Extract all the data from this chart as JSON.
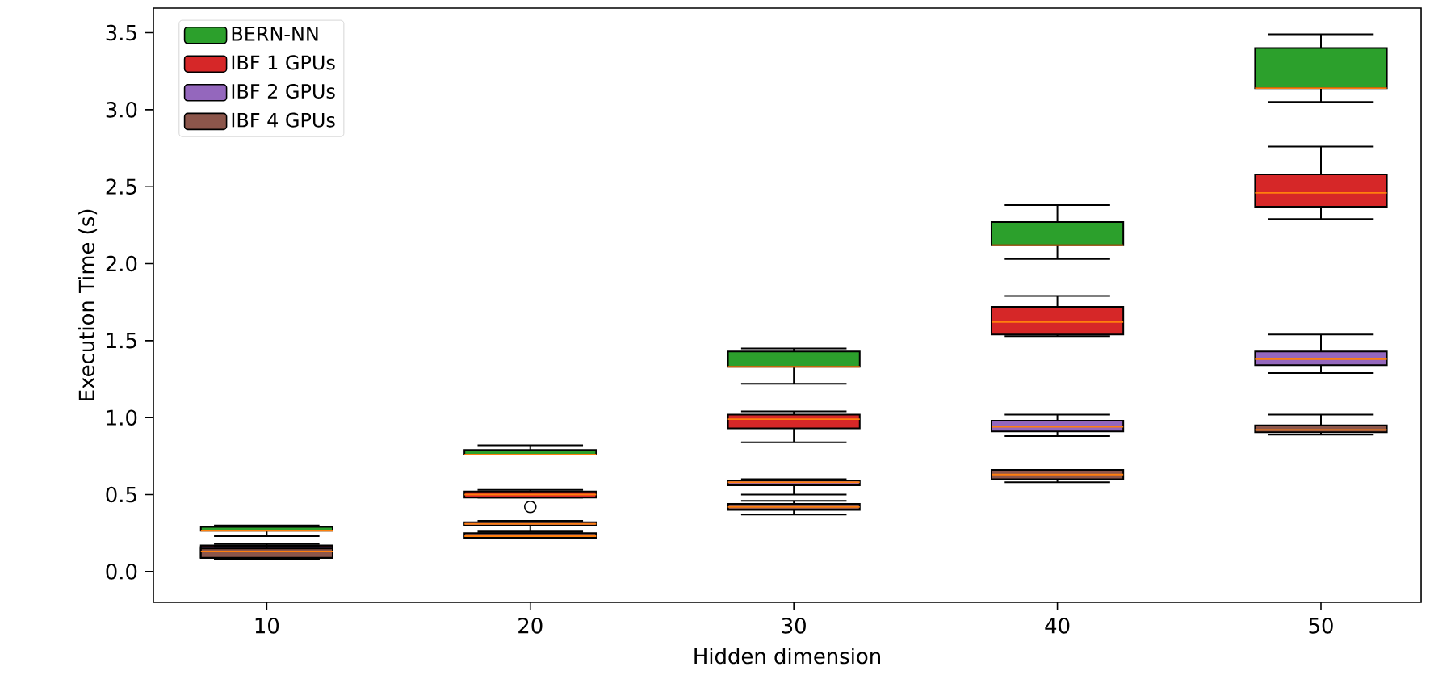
{
  "chart_data": {
    "type": "box",
    "xlabel": "Hidden dimension",
    "ylabel": "Execution Time (s)",
    "categories": [
      "10",
      "20",
      "30",
      "40",
      "50"
    ],
    "ylim": [
      -0.2,
      3.66
    ],
    "yticks": [
      {
        "value": 0,
        "label": "0.0"
      },
      0.5,
      {
        "value": 1,
        "label": "1.0"
      },
      1.5,
      {
        "value": 2,
        "label": "2.0"
      },
      2.5,
      {
        "value": 3,
        "label": "3.0"
      },
      3.5
    ],
    "grid": false,
    "legend": "top left",
    "series": [
      {
        "name": "BERN-NN",
        "color": "#2ca02c",
        "boxes": [
          {
            "low": 0.23,
            "q1": 0.265,
            "median": 0.265,
            "q3": 0.29,
            "high": 0.3
          },
          {
            "low": 0.76,
            "q1": 0.76,
            "median": 0.76,
            "q3": 0.79,
            "high": 0.82
          },
          {
            "low": 1.22,
            "q1": 1.33,
            "median": 1.33,
            "q3": 1.43,
            "high": 1.45
          },
          {
            "low": 2.03,
            "q1": 2.12,
            "median": 2.12,
            "q3": 2.27,
            "high": 2.38
          },
          {
            "low": 3.05,
            "q1": 3.14,
            "median": 3.14,
            "q3": 3.4,
            "high": 3.49
          }
        ]
      },
      {
        "name": "IBF 1 GPUs",
        "color": "#d62728",
        "boxes": [
          {
            "low": 0.08,
            "q1": 0.09,
            "median": 0.15,
            "q3": 0.17,
            "high": 0.18
          },
          {
            "low": 0.48,
            "q1": 0.48,
            "median": 0.5,
            "q3": 0.52,
            "high": 0.53,
            "outliers": [
              0.42
            ]
          },
          {
            "low": 0.84,
            "q1": 0.93,
            "median": 0.99,
            "q3": 1.02,
            "high": 1.04
          },
          {
            "low": 1.53,
            "q1": 1.54,
            "median": 1.62,
            "q3": 1.72,
            "high": 1.79
          },
          {
            "low": 2.29,
            "q1": 2.37,
            "median": 2.46,
            "q3": 2.58,
            "high": 2.76
          }
        ]
      },
      {
        "name": "IBF 2 GPUs",
        "color": "#9467bd",
        "boxes": [
          {
            "low": 0.08,
            "q1": 0.09,
            "median": 0.14,
            "q3": 0.16,
            "high": 0.17
          },
          {
            "low": 0.26,
            "q1": 0.3,
            "median": 0.31,
            "q3": 0.32,
            "high": 0.33
          },
          {
            "low": 0.5,
            "q1": 0.56,
            "median": 0.58,
            "q3": 0.59,
            "high": 0.6
          },
          {
            "low": 0.88,
            "q1": 0.91,
            "median": 0.94,
            "q3": 0.98,
            "high": 1.02
          },
          {
            "low": 1.29,
            "q1": 1.34,
            "median": 1.38,
            "q3": 1.43,
            "high": 1.54
          }
        ]
      },
      {
        "name": "IBF 4 GPUs",
        "color": "#8c564b",
        "boxes": [
          {
            "low": 0.08,
            "q1": 0.09,
            "median": 0.13,
            "q3": 0.15,
            "high": 0.16
          },
          {
            "low": 0.22,
            "q1": 0.22,
            "median": 0.23,
            "q3": 0.25,
            "high": 0.25
          },
          {
            "low": 0.37,
            "q1": 0.4,
            "median": 0.42,
            "q3": 0.44,
            "high": 0.46
          },
          {
            "low": 0.58,
            "q1": 0.6,
            "median": 0.63,
            "q3": 0.66,
            "high": 0.66
          },
          {
            "low": 0.89,
            "q1": 0.905,
            "median": 0.92,
            "q3": 0.95,
            "high": 1.02
          }
        ]
      }
    ]
  }
}
